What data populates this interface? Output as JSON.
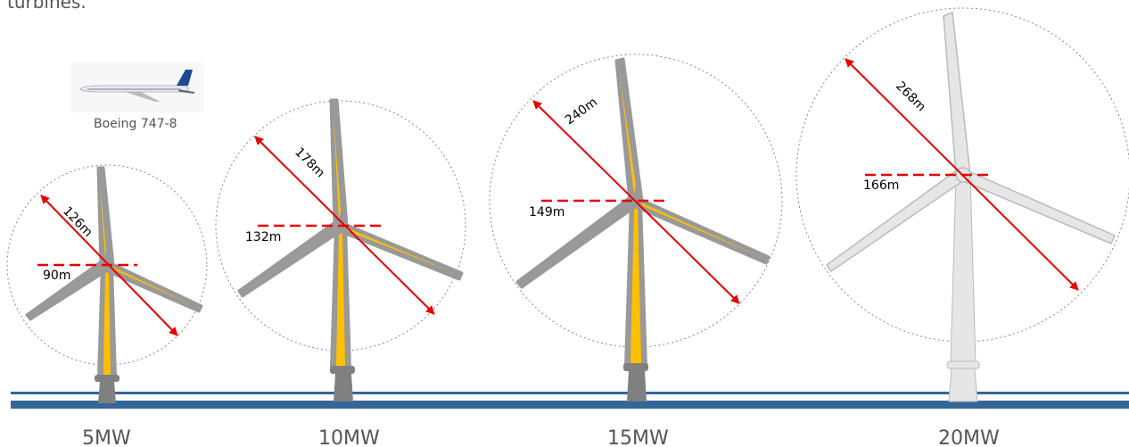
{
  "intro_text": "turbines.",
  "reference": {
    "caption": "Boeing 747-8"
  },
  "colors": {
    "blade_gray": "#999999",
    "blade_core": "#ffc000",
    "white_turbine": "#e6e6e6",
    "arrow": "#e60000",
    "sea": "#336699"
  },
  "turbines": [
    {
      "power": "5MW",
      "rotor_diameter": "126m",
      "hub_height": "90m",
      "style": "yellow"
    },
    {
      "power": "10MW",
      "rotor_diameter": "178m",
      "hub_height": "132m",
      "style": "yellow"
    },
    {
      "power": "15MW",
      "rotor_diameter": "240m",
      "hub_height": "149m",
      "style": "yellow"
    },
    {
      "power": "20MW",
      "rotor_diameter": "268m",
      "hub_height": "166m",
      "style": "white"
    }
  ]
}
